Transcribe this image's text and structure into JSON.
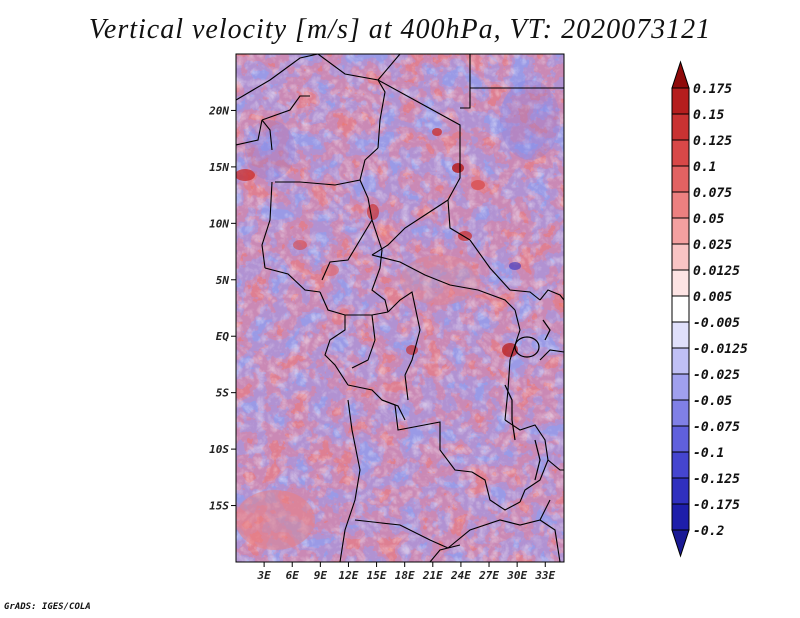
{
  "title": "Vertical velocity [m/s] at 400hPa, VT: 2020073121",
  "footer": "GrADS: IGES/COLA",
  "map": {
    "lon_range": [
      0,
      35
    ],
    "lat_range": [
      -20,
      25
    ],
    "lat_ticks": [
      {
        "value": 20,
        "label": "20N"
      },
      {
        "value": 15,
        "label": "15N"
      },
      {
        "value": 10,
        "label": "10N"
      },
      {
        "value": 5,
        "label": "5N"
      },
      {
        "value": 0,
        "label": "EQ"
      },
      {
        "value": -5,
        "label": "5S"
      },
      {
        "value": -10,
        "label": "10S"
      },
      {
        "value": -15,
        "label": "15S"
      }
    ],
    "lon_ticks": [
      {
        "value": 3,
        "label": "3E"
      },
      {
        "value": 6,
        "label": "6E"
      },
      {
        "value": 9,
        "label": "9E"
      },
      {
        "value": 12,
        "label": "12E"
      },
      {
        "value": 15,
        "label": "15E"
      },
      {
        "value": 18,
        "label": "18E"
      },
      {
        "value": 21,
        "label": "21E"
      },
      {
        "value": 24,
        "label": "24E"
      },
      {
        "value": 27,
        "label": "27E"
      },
      {
        "value": 30,
        "label": "30E"
      },
      {
        "value": 33,
        "label": "33E"
      }
    ]
  },
  "colorbar": {
    "levels": [
      {
        "label": "0.175",
        "color": "#a01010"
      },
      {
        "label": "0.15",
        "color": "#b51e1e"
      },
      {
        "label": "0.125",
        "color": "#c93232"
      },
      {
        "label": "0.1",
        "color": "#d84848"
      },
      {
        "label": "0.075",
        "color": "#e26262"
      },
      {
        "label": "0.05",
        "color": "#ec8080"
      },
      {
        "label": "0.025",
        "color": "#f4a0a0"
      },
      {
        "label": "0.0125",
        "color": "#f9c4c4"
      },
      {
        "label": "0.005",
        "color": "#fde4e4"
      },
      {
        "label": "-0.005",
        "color": "#ffffff"
      },
      {
        "label": "-0.0125",
        "color": "#e0e0fb"
      },
      {
        "label": "-0.025",
        "color": "#c0c0f5"
      },
      {
        "label": "-0.05",
        "color": "#a0a0ee"
      },
      {
        "label": "-0.075",
        "color": "#8080e6"
      },
      {
        "label": "-0.1",
        "color": "#6060dc"
      },
      {
        "label": "-0.125",
        "color": "#4545cf"
      },
      {
        "label": "-0.175",
        "color": "#3030bf"
      },
      {
        "label": "-0.2",
        "color": "#1e1eaa"
      }
    ],
    "top_color": "#8f0a0a",
    "bottom_color": "#1a1a95"
  }
}
